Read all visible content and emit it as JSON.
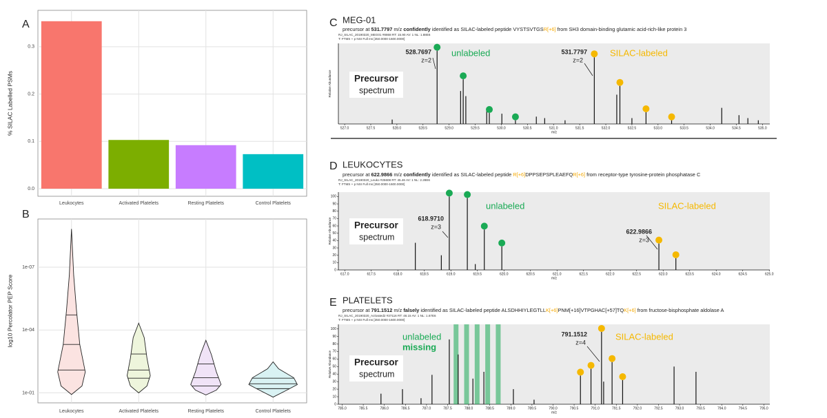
{
  "chart_data": [
    {
      "type": "bar",
      "panel": "A",
      "ylabel": "% SILAC Labelled PSMs",
      "categories": [
        "Leukocytes",
        "Activated Platelets",
        "Resting Platelets",
        "Control Platelets"
      ],
      "values": [
        0.354,
        0.103,
        0.092,
        0.073
      ],
      "colors": [
        "#f8766d",
        "#7cae00",
        "#c77cff",
        "#00bfc4"
      ],
      "ylim": [
        -0.016,
        0.377
      ],
      "yticks": [
        {
          "value": 0,
          "label": "0.0"
        },
        0.1,
        0.2,
        0.3
      ],
      "grid": true
    },
    {
      "type": "violin",
      "panel": "B",
      "ylabel": "log10 Percolator PEP Score",
      "log_scale": true,
      "categories": [
        "Leukocytes",
        "Activated Platelets",
        "Resting Platelets",
        "Control Platelets"
      ],
      "colors": [
        "#fbe3e1",
        "#eef5dc",
        "#f0e3f7",
        "#d9f2f3"
      ],
      "violins": [
        {
          "values": [
            1.5e-09,
            2.5e-07,
            1.1e-05,
            0.00049,
            0.01,
            0.047,
            0.12
          ],
          "widths": [
            0,
            0.08,
            0.18,
            0.3,
            0.5,
            0.38,
            0
          ],
          "quantiles": [
            0.0081,
            0.00049,
            1.9e-05
          ]
        },
        {
          "values": [
            4.7e-05,
            0.00023,
            0.0022,
            0.015,
            0.047,
            0.1
          ],
          "widths": [
            0,
            0.2,
            0.3,
            0.42,
            0.3,
            0
          ],
          "quantiles": [
            0.02,
            0.0081,
            0.0014
          ]
        },
        {
          "values": [
            0.00031,
            0.0015,
            0.01,
            0.04,
            0.074,
            0.126
          ],
          "widths": [
            0,
            0.2,
            0.38,
            0.55,
            0.38,
            0
          ],
          "quantiles": [
            0.047,
            0.019,
            0.0042
          ]
        },
        {
          "values": [
            0.0033,
            0.0071,
            0.019,
            0.04,
            0.074,
            0.16
          ],
          "widths": [
            0,
            0.2,
            0.75,
            0.88,
            0.5,
            0
          ],
          "quantiles": [
            0.063,
            0.037,
            0.02
          ]
        }
      ],
      "ylim": [
        0.3,
        5e-10
      ],
      "yticks": [
        {
          "value": 1e-07,
          "label": "1e-07"
        },
        {
          "value": 0.0001,
          "label": "1e-04"
        },
        {
          "value": 0.1,
          "label": "1e-01"
        }
      ],
      "grid": true
    },
    {
      "type": "spectrum",
      "panel": "C",
      "title": "MEG-01",
      "subtitle": [
        "precursor at ",
        "531.7797",
        " m/z ",
        "confidently",
        " identified as SILAC-labeled peptide VYSTSVTGS",
        "R[+6]",
        " from SH3 domain-binding glutamic acid-rich-like protein 3"
      ],
      "meta": [
        "RJ_SILAC_20190320_MEG01 #8868 RT: 15.90 AV: 1 NL: 1.88E6",
        "T: FTMS + p NSI Full ms [350.0000-1600.0000]"
      ],
      "xlabel": "m/z",
      "ylabel": "Relative Abundance",
      "label": [
        "Precursor",
        "spectrum"
      ],
      "xlim": [
        526.88,
        535.14
      ],
      "ylim": [
        0,
        110
      ],
      "xticks": [
        {
          "value": 527,
          "label": "527.0"
        },
        527.5,
        {
          "value": 528,
          "label": "528.0"
        },
        528.5,
        {
          "value": 529,
          "label": "529.0"
        },
        529.5,
        {
          "value": 530,
          "label": "530.0"
        },
        530.5,
        {
          "value": 531,
          "label": "531.0"
        },
        531.5,
        {
          "value": 532,
          "label": "532.0"
        },
        532.5,
        {
          "value": 533,
          "label": "533.0"
        },
        533.5,
        {
          "value": 534,
          "label": "534.0"
        },
        534.5,
        {
          "value": 535,
          "label": "535.0"
        }
      ],
      "peaks": {
        "x": [
          527.91,
          528.77,
          529.22,
          529.27,
          529.32,
          529.72,
          529.77,
          530.01,
          530.27,
          530.67,
          530.83,
          531.22,
          531.78,
          532.21,
          532.27,
          532.5,
          532.77,
          533.26,
          534.22,
          534.55,
          534.72,
          534.92
        ],
        "values": [
          6,
          100,
          45,
          61,
          38,
          22,
          15,
          14,
          5,
          10,
          8,
          5,
          91,
          40,
          52,
          8,
          16,
          5,
          22,
          12,
          8,
          5
        ]
      },
      "series": [
        {
          "name": "unlabeled",
          "color": "#1aaa55",
          "precursor": "528.7697",
          "charge": "z=2",
          "x": [
            528.77,
            529.27,
            529.77,
            530.27
          ],
          "values": [
            100,
            61,
            15,
            5
          ]
        },
        {
          "name": "SILAC-labeled",
          "color": "#f5b800",
          "precursor": "531.7797",
          "charge": "z=2",
          "x": [
            531.78,
            532.27,
            532.77,
            533.26
          ],
          "values": [
            91,
            52,
            16,
            5
          ]
        }
      ]
    },
    {
      "type": "spectrum",
      "panel": "D",
      "title": "LEUKOCYTES",
      "subtitle": [
        "precursor at ",
        "622.9866",
        " m/z ",
        "confidently",
        " identified as SILAC-labeled peptide ",
        "R[+6]",
        "DPPSEPSPLEAEFQ",
        "R[+6]",
        " from receptor-type tyrosine-protein phosphatase C"
      ],
      "meta": [
        "RJ_SILAC_20190320_Leuko #25608 RT: 45.46 AV: 1 NL: 2.28E6",
        "T: FTMS + p NSI Full ms [350.0000-1600.0000]"
      ],
      "xlabel": "m/z",
      "ylabel": "Relative Abundance",
      "label": [
        "Precursor",
        "spectrum"
      ],
      "xlim": [
        616.88,
        625.01
      ],
      "ylim": [
        0,
        106
      ],
      "xticks": [
        {
          "value": 617,
          "label": "617.0"
        },
        617.5,
        {
          "value": 618,
          "label": "618.0"
        },
        618.5,
        {
          "value": 619,
          "label": "619.0"
        },
        619.5,
        {
          "value": 620,
          "label": "620.0"
        },
        620.5,
        {
          "value": 621,
          "label": "621.0"
        },
        621.5,
        {
          "value": 622,
          "label": "622.0"
        },
        622.5,
        {
          "value": 623,
          "label": "623.0"
        },
        623.5,
        {
          "value": 624,
          "label": "624.0"
        },
        624.5,
        {
          "value": 625,
          "label": "625.0"
        }
      ],
      "yticks": [
        0,
        10,
        20,
        30,
        40,
        50,
        60,
        70,
        80,
        90,
        100
      ],
      "peaks": {
        "x": [
          618.33,
          618.82,
          618.97,
          619.31,
          619.46,
          619.63,
          619.96,
          622.92,
          623.24
        ],
        "values": [
          37,
          20,
          100,
          98,
          8,
          55,
          32,
          36,
          16
        ]
      },
      "series": [
        {
          "name": "unlabeled",
          "color": "#1aaa55",
          "precursor": "618.9710",
          "charge": "z=3",
          "x": [
            618.97,
            619.31,
            619.63,
            619.96
          ],
          "values": [
            100,
            98,
            55,
            32
          ]
        },
        {
          "name": "SILAC-labeled",
          "color": "#f5b800",
          "precursor": "622.9866",
          "charge": "z=3",
          "x": [
            622.92,
            623.24
          ],
          "values": [
            36,
            16
          ]
        }
      ]
    },
    {
      "type": "spectrum",
      "panel": "E",
      "title": "PLATELETS",
      "subtitle": [
        "precursor at ",
        "791.1512",
        " m/z ",
        "falsely",
        " identified as SILAC-labeled peptide ALSDHHIYLEGTLL",
        "K[+6]",
        "PNM[+16]VTPGHAC[+57]TQ",
        "K[+6]",
        " from fructose-bisphosphate aldolase A"
      ],
      "meta": [
        "RJ_SILAC_20190320_Activated2 #37116 RT: 48.15 AV: 1 NL: 1.67E6",
        "T: FTMS + p NSI Full ms [350.0000-1600.0000]"
      ],
      "xlabel": "m/z",
      "ylabel": "Relative Abundance",
      "label": [
        "Precursor",
        "spectrum"
      ],
      "xlim": [
        784.91,
        795.14
      ],
      "ylim": [
        0,
        106
      ],
      "xticks": [
        {
          "value": 785,
          "label": "785.0"
        },
        785.5,
        {
          "value": 786,
          "label": "786.0"
        },
        786.5,
        {
          "value": 787,
          "label": "787.0"
        },
        787.5,
        {
          "value": 788,
          "label": "788.0"
        },
        788.5,
        {
          "value": 789,
          "label": "789.0"
        },
        789.5,
        {
          "value": 790,
          "label": "790.0"
        },
        790.5,
        {
          "value": 791,
          "label": "791.0"
        },
        791.5,
        {
          "value": 792,
          "label": "792.0"
        },
        792.5,
        {
          "value": 793,
          "label": "793.0"
        },
        793.5,
        {
          "value": 794,
          "label": "794.0"
        },
        794.5,
        {
          "value": 795,
          "label": "795.0"
        }
      ],
      "yticks": [
        0,
        10,
        20,
        30,
        40,
        50,
        60,
        70,
        80,
        90,
        100
      ],
      "peaks": {
        "x": [
          785.92,
          786.43,
          786.87,
          787.13,
          787.54,
          787.75,
          788.1,
          788.36,
          789.06,
          789.55,
          790.65,
          790.9,
          791.15,
          791.2,
          791.4,
          791.65,
          792.87,
          793.39
        ],
        "values": [
          14,
          20,
          8,
          39,
          86,
          66,
          34,
          43,
          20,
          6,
          38,
          47,
          96,
          30,
          56,
          32,
          50,
          43
        ]
      },
      "series": [
        {
          "name": "unlabeled",
          "color": "#1aaa55",
          "status": "missing",
          "expected_x": [
            787.7,
            787.95,
            788.2,
            788.45,
            788.7
          ]
        },
        {
          "name": "SILAC-labeled",
          "color": "#f5b800",
          "precursor": "791.1512",
          "charge": "z=4",
          "x": [
            790.65,
            790.9,
            791.15,
            791.4,
            791.65
          ],
          "values": [
            38,
            47,
            96,
            56,
            32
          ]
        }
      ]
    }
  ]
}
